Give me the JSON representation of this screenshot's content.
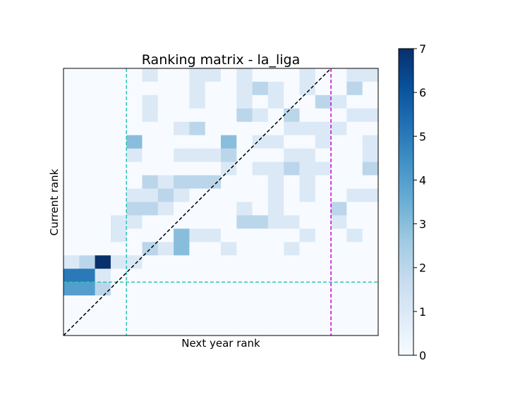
{
  "chart_data": {
    "type": "heatmap",
    "title": "Ranking matrix - la_liga",
    "xlabel": "Next year rank",
    "ylabel": "Current rank",
    "colormap": "Blues",
    "colorbar": {
      "min": 0,
      "max": 7,
      "ticks": [
        "0",
        "1",
        "2",
        "3",
        "4",
        "5",
        "6",
        "7"
      ]
    },
    "n_ranks": 20,
    "rows_from_top": [
      [
        0,
        0,
        0,
        0,
        0,
        1,
        0,
        0,
        1,
        1,
        0,
        1,
        0,
        0,
        0,
        1,
        0,
        0,
        1,
        1
      ],
      [
        0,
        0,
        0,
        0,
        0,
        0,
        0,
        0,
        1,
        0,
        0,
        1,
        2,
        1,
        0,
        1,
        0,
        0,
        2,
        0
      ],
      [
        0,
        0,
        0,
        0,
        0,
        1,
        0,
        0,
        1,
        0,
        0,
        1,
        0,
        1,
        0,
        0,
        2,
        1,
        0,
        0
      ],
      [
        0,
        0,
        0,
        0,
        0,
        1,
        0,
        0,
        0,
        0,
        0,
        2,
        1,
        0,
        2,
        0,
        0,
        0,
        1,
        1
      ],
      [
        0,
        0,
        0,
        0,
        0,
        0,
        0,
        1,
        2,
        0,
        0,
        0,
        0,
        0,
        1,
        1,
        1,
        1,
        0,
        0
      ],
      [
        0,
        0,
        0,
        0,
        3,
        0,
        0,
        0,
        0,
        0,
        3,
        0,
        1,
        1,
        0,
        0,
        1,
        0,
        0,
        1
      ],
      [
        0,
        0,
        0,
        0,
        1,
        0,
        0,
        1,
        1,
        1,
        2,
        0,
        0,
        0,
        1,
        1,
        0,
        0,
        0,
        1
      ],
      [
        0,
        0,
        0,
        0,
        0,
        0,
        0,
        0,
        0,
        0,
        1,
        0,
        1,
        1,
        2,
        1,
        1,
        0,
        0,
        2
      ],
      [
        0,
        0,
        0,
        0,
        0,
        2,
        1,
        2,
        2,
        2,
        0,
        0,
        0,
        1,
        0,
        1,
        0,
        0,
        0,
        0
      ],
      [
        0,
        0,
        0,
        0,
        1,
        1,
        2,
        1,
        0,
        0,
        0,
        0,
        0,
        1,
        0,
        1,
        0,
        0,
        1,
        1
      ],
      [
        0,
        0,
        0,
        0,
        2,
        2,
        1,
        0,
        0,
        0,
        0,
        1,
        0,
        1,
        0,
        0,
        0,
        2,
        0,
        0
      ],
      [
        0,
        0,
        0,
        1,
        1,
        0,
        0,
        0,
        0,
        0,
        0,
        2,
        2,
        1,
        1,
        0,
        0,
        1,
        0,
        0
      ],
      [
        0,
        0,
        0,
        1,
        0,
        0,
        0,
        3,
        1,
        1,
        0,
        0,
        0,
        0,
        0,
        1,
        0,
        0,
        1,
        0
      ],
      [
        0,
        0,
        0,
        0,
        0,
        2,
        1,
        3,
        0,
        0,
        1,
        0,
        0,
        0,
        1,
        0,
        0,
        0,
        0,
        0
      ],
      [
        1,
        2,
        7,
        1,
        1,
        0,
        0,
        0,
        0,
        0,
        0,
        0,
        0,
        0,
        0,
        0,
        0,
        0,
        0,
        0
      ],
      [
        5,
        5,
        1,
        0,
        0,
        0,
        0,
        0,
        0,
        0,
        0,
        0,
        0,
        0,
        0,
        0,
        0,
        0,
        0,
        0
      ],
      [
        4,
        4,
        2,
        0,
        0,
        0,
        0,
        0,
        0,
        0,
        0,
        0,
        0,
        0,
        0,
        0,
        0,
        0,
        0,
        0
      ]
    ],
    "rows_from_top_note": "partial",
    "diagonal_line": true,
    "reference_lines": {
      "cyan_vertical_after_rank": 4,
      "cyan_horizontal_after_rank": 4,
      "magenta_vertical_after_rank": 17
    },
    "colors": {
      "cyan": "#2ec4b6",
      "magenta": "#cc00cc",
      "diagonal": "#000000"
    }
  }
}
